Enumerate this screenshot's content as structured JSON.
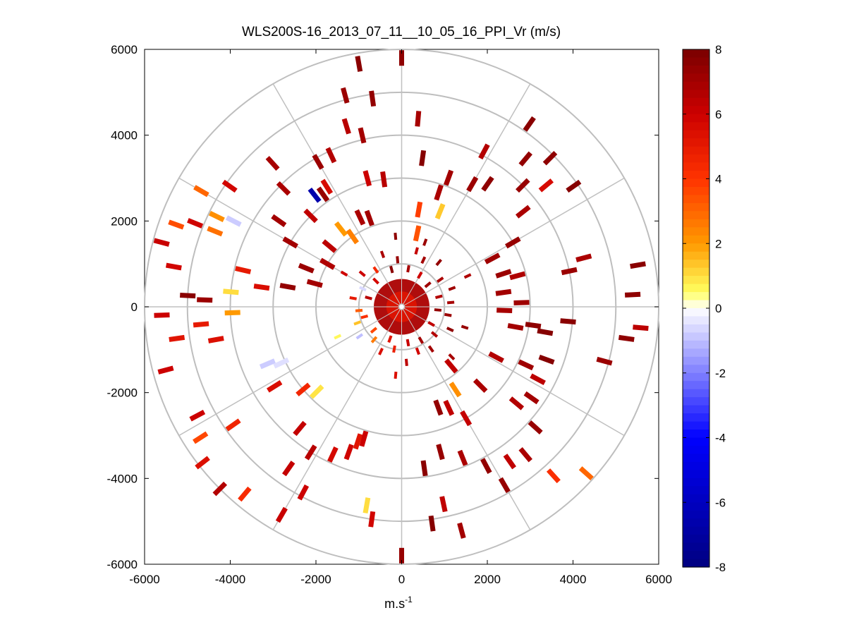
{
  "chart_data": {
    "type": "polar-ppi-scatter",
    "title": "WLS200S-16_2013_07_11__10_05_16_PPI_Vr (m/s)",
    "xlabel_base": "m.s",
    "xlabel_sup": "-1",
    "ylabel": "",
    "xlim": [
      -6000,
      6000
    ],
    "ylim": [
      -6000,
      6000
    ],
    "xticks": [
      -6000,
      -4000,
      -2000,
      0,
      2000,
      4000,
      6000
    ],
    "yticks": [
      6000,
      4000,
      2000,
      0,
      -2000,
      -4000,
      -6000
    ],
    "xtick_labels": [
      "-6000",
      "-4000",
      "-2000",
      "0",
      "2000",
      "4000",
      "6000"
    ],
    "ytick_labels": [
      "6000",
      "4000",
      "2000",
      "0",
      "-2000",
      "-4000",
      "-6000"
    ],
    "range_rings": [
      1000,
      2000,
      3000,
      4000,
      5000,
      6000
    ],
    "spokes_deg": [
      0,
      30,
      60,
      90,
      120,
      150,
      180,
      210,
      240,
      270,
      300,
      330
    ],
    "grid": true,
    "colorbar": {
      "min": -8,
      "max": 8,
      "ticks": [
        8,
        6,
        4,
        2,
        0,
        -2,
        -4,
        -6,
        -8
      ],
      "tick_labels": [
        "8",
        "6",
        "4",
        "2",
        "0",
        "-2",
        "-4",
        "-6",
        "-8"
      ],
      "position": "right"
    },
    "near_field": {
      "radius": 650,
      "value": 6.8
    },
    "points": [
      {
        "az": 0,
        "r": 5800,
        "v": 7.5
      },
      {
        "az": 350,
        "r": 5750,
        "v": 7.6
      },
      {
        "az": 345,
        "r": 5100,
        "v": 7.2
      },
      {
        "az": 352,
        "r": 4900,
        "v": 7.4
      },
      {
        "az": 5,
        "r": 4400,
        "v": 6.9
      },
      {
        "az": 343,
        "r": 4400,
        "v": 6.5
      },
      {
        "az": 347,
        "r": 4100,
        "v": 7.0
      },
      {
        "az": 335,
        "r": 3900,
        "v": 6.6
      },
      {
        "az": 330,
        "r": 3900,
        "v": 7.2
      },
      {
        "az": 328,
        "r": 3300,
        "v": 5.6
      },
      {
        "az": 325,
        "r": 3200,
        "v": 7.3
      },
      {
        "az": 315,
        "r": 3000,
        "v": 6.3
      },
      {
        "az": 322,
        "r": 3300,
        "v": -6.6
      },
      {
        "az": 345,
        "r": 3100,
        "v": 6.0
      },
      {
        "az": 352,
        "r": 3000,
        "v": 6.5
      },
      {
        "az": 8,
        "r": 3500,
        "v": 7.7
      },
      {
        "az": 20,
        "r": 3200,
        "v": 7.0
      },
      {
        "az": 18,
        "r": 2800,
        "v": 6.8
      },
      {
        "az": 30,
        "r": 3300,
        "v": 7.2
      },
      {
        "az": 28,
        "r": 4100,
        "v": 6.6
      },
      {
        "az": 35,
        "r": 3500,
        "v": 7.5
      },
      {
        "az": 40,
        "r": 4500,
        "v": 7.4
      },
      {
        "az": 35,
        "r": 5200,
        "v": 7.6
      },
      {
        "az": 45,
        "r": 4900,
        "v": 7.5
      },
      {
        "az": 50,
        "r": 4400,
        "v": 5.6
      },
      {
        "az": 55,
        "r": 4900,
        "v": 7.7
      },
      {
        "az": 45,
        "r": 4000,
        "v": 7.3
      },
      {
        "az": 52,
        "r": 3600,
        "v": 6.8
      },
      {
        "az": 60,
        "r": 3000,
        "v": 7.3
      },
      {
        "az": 62,
        "r": 2400,
        "v": 7.1
      },
      {
        "az": 10,
        "r": 2300,
        "v": 3.8
      },
      {
        "az": 12,
        "r": 1750,
        "v": 3.4
      },
      {
        "az": 22,
        "r": 2400,
        "v": 1.3
      },
      {
        "az": 340,
        "r": 2200,
        "v": 7.0
      },
      {
        "az": 335,
        "r": 2300,
        "v": 6.8
      },
      {
        "az": 325,
        "r": 2000,
        "v": 2.5
      },
      {
        "az": 322,
        "r": 2300,
        "v": 2.0
      },
      {
        "az": 310,
        "r": 2200,
        "v": 6.4
      },
      {
        "az": 300,
        "r": 2000,
        "v": 6.7
      },
      {
        "az": 292,
        "r": 2400,
        "v": 7.2
      },
      {
        "az": 285,
        "r": 2100,
        "v": 7.0
      },
      {
        "az": 280,
        "r": 2700,
        "v": 7.4
      },
      {
        "az": 278,
        "r": 3300,
        "v": 5.5
      },
      {
        "az": 283,
        "r": 3800,
        "v": 5.0
      },
      {
        "az": 300,
        "r": 3000,
        "v": 7.0
      },
      {
        "az": 305,
        "r": 3500,
        "v": 7.0
      },
      {
        "az": 315,
        "r": 3900,
        "v": 6.8
      },
      {
        "az": 318,
        "r": 4500,
        "v": 6.9
      },
      {
        "az": 305,
        "r": 4900,
        "v": 5.8
      },
      {
        "az": 300,
        "r": 5400,
        "v": 3.0
      },
      {
        "az": 292,
        "r": 5200,
        "v": 5.9
      },
      {
        "az": 290,
        "r": 5600,
        "v": 3.5
      },
      {
        "az": 285,
        "r": 5800,
        "v": 6.1
      },
      {
        "az": 280,
        "r": 5400,
        "v": 5.8
      },
      {
        "az": 273,
        "r": 5000,
        "v": 7.6
      },
      {
        "az": 272,
        "r": 4600,
        "v": 7.2
      },
      {
        "az": 268,
        "r": 5600,
        "v": 6.0
      },
      {
        "az": 262,
        "r": 5300,
        "v": 5.2
      },
      {
        "az": 255,
        "r": 5700,
        "v": 6.0
      },
      {
        "az": 265,
        "r": 4700,
        "v": 5.0
      },
      {
        "az": 260,
        "r": 4400,
        "v": 5.4
      },
      {
        "az": 292,
        "r": 4700,
        "v": 2.8
      },
      {
        "az": 296,
        "r": 4800,
        "v": 2.2
      },
      {
        "az": 297,
        "r": 4400,
        "v": -0.8
      },
      {
        "az": 275,
        "r": 4000,
        "v": 1.0
      },
      {
        "az": 268,
        "r": 3950,
        "v": 2.0
      },
      {
        "az": 247,
        "r": 3400,
        "v": -0.8
      },
      {
        "az": 245,
        "r": 3100,
        "v": -0.5
      },
      {
        "az": 238,
        "r": 3500,
        "v": 5.5
      },
      {
        "az": 230,
        "r": 3000,
        "v": 4.5
      },
      {
        "az": 225,
        "r": 2800,
        "v": 0.9
      },
      {
        "az": 220,
        "r": 3700,
        "v": 6.2
      },
      {
        "az": 215,
        "r": 4600,
        "v": 6.2
      },
      {
        "az": 208,
        "r": 4900,
        "v": 6.0
      },
      {
        "az": 210,
        "r": 5600,
        "v": 6.1
      },
      {
        "az": 220,
        "r": 5700,
        "v": 4.3
      },
      {
        "az": 225,
        "r": 6000,
        "v": 6.6
      },
      {
        "az": 232,
        "r": 5900,
        "v": 5.4
      },
      {
        "az": 237,
        "r": 5600,
        "v": 3.6
      },
      {
        "az": 242,
        "r": 5400,
        "v": 6.0
      },
      {
        "az": 235,
        "r": 4800,
        "v": 4.6
      },
      {
        "az": 212,
        "r": 4000,
        "v": 6.5
      },
      {
        "az": 205,
        "r": 3800,
        "v": 5.7
      },
      {
        "az": 198,
        "r": 3300,
        "v": 5.2
      },
      {
        "az": 200,
        "r": 3600,
        "v": 5.9
      },
      {
        "az": 196,
        "r": 3200,
        "v": 6.0
      },
      {
        "az": 190,
        "r": 4700,
        "v": 1.0
      },
      {
        "az": 188,
        "r": 5000,
        "v": 5.8
      },
      {
        "az": 180,
        "r": 5800,
        "v": 7.3
      },
      {
        "az": 172,
        "r": 5100,
        "v": 7.7
      },
      {
        "az": 165,
        "r": 5400,
        "v": 7.0
      },
      {
        "az": 168,
        "r": 4700,
        "v": 6.3
      },
      {
        "az": 172,
        "r": 3800,
        "v": 7.6
      },
      {
        "az": 165,
        "r": 3500,
        "v": 7.3
      },
      {
        "az": 158,
        "r": 3800,
        "v": 6.8
      },
      {
        "az": 152,
        "r": 4200,
        "v": 7.4
      },
      {
        "az": 150,
        "r": 4800,
        "v": 7.3
      },
      {
        "az": 145,
        "r": 4400,
        "v": 6.3
      },
      {
        "az": 138,
        "r": 5300,
        "v": 4.2
      },
      {
        "az": 132,
        "r": 5800,
        "v": 3.0
      },
      {
        "az": 140,
        "r": 4500,
        "v": 6.8
      },
      {
        "az": 132,
        "r": 4200,
        "v": 7.3
      },
      {
        "az": 125,
        "r": 3700,
        "v": 7.0
      },
      {
        "az": 130,
        "r": 3500,
        "v": 6.6
      },
      {
        "az": 115,
        "r": 3200,
        "v": 7.1
      },
      {
        "az": 118,
        "r": 3600,
        "v": 6.4
      },
      {
        "az": 110,
        "r": 3600,
        "v": 7.7
      },
      {
        "az": 118,
        "r": 2500,
        "v": 6.6
      },
      {
        "az": 135,
        "r": 2600,
        "v": 6.8
      },
      {
        "az": 150,
        "r": 3000,
        "v": 6.2
      },
      {
        "az": 155,
        "r": 2600,
        "v": 6.3
      },
      {
        "az": 160,
        "r": 2500,
        "v": 7.4
      },
      {
        "az": 147,
        "r": 2300,
        "v": 2.2
      },
      {
        "az": 140,
        "r": 1800,
        "v": 6.3
      },
      {
        "az": 100,
        "r": 2700,
        "v": 7.0
      },
      {
        "az": 98,
        "r": 3100,
        "v": 7.5
      },
      {
        "az": 95,
        "r": 3900,
        "v": 7.6
      },
      {
        "az": 105,
        "r": 4900,
        "v": 7.2
      },
      {
        "az": 98,
        "r": 5300,
        "v": 7.5
      },
      {
        "az": 95,
        "r": 5600,
        "v": 6.4
      },
      {
        "az": 87,
        "r": 5400,
        "v": 7.5
      },
      {
        "az": 80,
        "r": 5600,
        "v": 7.6
      },
      {
        "az": 78,
        "r": 4000,
        "v": 7.2
      },
      {
        "az": 75,
        "r": 4400,
        "v": 6.8
      },
      {
        "az": 72,
        "r": 2500,
        "v": 7.2
      },
      {
        "az": 75,
        "r": 2800,
        "v": 6.7
      },
      {
        "az": 82,
        "r": 2400,
        "v": 7.0
      },
      {
        "az": 92,
        "r": 2400,
        "v": 6.9
      },
      {
        "az": 88,
        "r": 2800,
        "v": 7.1
      },
      {
        "az": 100,
        "r": 3400,
        "v": 7.7
      }
    ],
    "mid_points": [
      {
        "az": 15,
        "r": 1350,
        "v": 6.2
      },
      {
        "az": 25,
        "r": 1200,
        "v": 7.0
      },
      {
        "az": 40,
        "r": 1350,
        "v": 7.4
      },
      {
        "az": 55,
        "r": 1100,
        "v": 6.8
      },
      {
        "az": 70,
        "r": 1250,
        "v": 7.1
      },
      {
        "az": 85,
        "r": 1150,
        "v": 6.9
      },
      {
        "az": 100,
        "r": 1100,
        "v": 7.2
      },
      {
        "az": 115,
        "r": 1250,
        "v": 7.5
      },
      {
        "az": 130,
        "r": 1000,
        "v": 6.6
      },
      {
        "az": 145,
        "r": 1200,
        "v": 7.0
      },
      {
        "az": 160,
        "r": 1100,
        "v": 5.8
      },
      {
        "az": 175,
        "r": 1300,
        "v": 6.4
      },
      {
        "az": 190,
        "r": 1000,
        "v": 4.8
      },
      {
        "az": 205,
        "r": 1150,
        "v": 5.5
      },
      {
        "az": 220,
        "r": 1000,
        "v": 2.6
      },
      {
        "az": 235,
        "r": 1200,
        "v": -1.0
      },
      {
        "az": 250,
        "r": 1100,
        "v": 1.4
      },
      {
        "az": 265,
        "r": 1000,
        "v": 3.2
      },
      {
        "az": 280,
        "r": 1150,
        "v": 5.0
      },
      {
        "az": 295,
        "r": 1000,
        "v": -0.6
      },
      {
        "az": 310,
        "r": 1200,
        "v": 6.0
      },
      {
        "az": 325,
        "r": 1050,
        "v": 4.4
      },
      {
        "az": 340,
        "r": 1300,
        "v": 6.8
      },
      {
        "az": 355,
        "r": 1100,
        "v": 7.3
      },
      {
        "az": 10,
        "r": 900,
        "v": 6.9
      },
      {
        "az": 30,
        "r": 850,
        "v": 5.9
      },
      {
        "az": 50,
        "r": 800,
        "v": 7.1
      },
      {
        "az": 75,
        "r": 900,
        "v": 6.6
      },
      {
        "az": 95,
        "r": 850,
        "v": 7.4
      },
      {
        "az": 120,
        "r": 800,
        "v": 6.3
      },
      {
        "az": 150,
        "r": 900,
        "v": 7.0
      },
      {
        "az": 170,
        "r": 850,
        "v": 6.1
      },
      {
        "az": 200,
        "r": 800,
        "v": 5.2
      },
      {
        "az": 230,
        "r": 850,
        "v": 3.6
      },
      {
        "az": 255,
        "r": 900,
        "v": 4.2
      },
      {
        "az": 285,
        "r": 800,
        "v": 6.5
      },
      {
        "az": 315,
        "r": 850,
        "v": 5.7
      },
      {
        "az": 345,
        "r": 900,
        "v": 7.6
      },
      {
        "az": 20,
        "r": 1600,
        "v": 7.2
      },
      {
        "az": 65,
        "r": 1700,
        "v": 6.7
      },
      {
        "az": 108,
        "r": 1550,
        "v": 7.3
      },
      {
        "az": 135,
        "r": 1650,
        "v": 6.9
      },
      {
        "az": 185,
        "r": 1600,
        "v": 5.4
      },
      {
        "az": 245,
        "r": 1650,
        "v": 0.6
      },
      {
        "az": 300,
        "r": 1550,
        "v": 5.9
      },
      {
        "az": 355,
        "r": 1650,
        "v": 7.5
      }
    ]
  }
}
